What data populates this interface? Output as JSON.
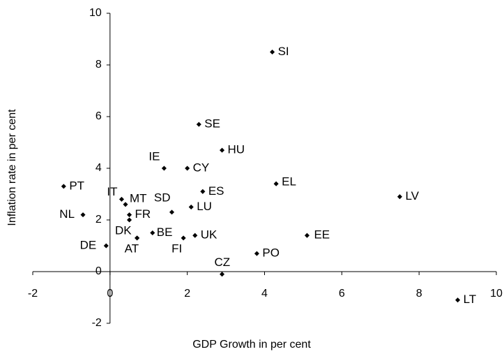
{
  "chart_data": {
    "type": "scatter",
    "x_label": "GDP Growth in per cent",
    "y_label": "Inflation rate in per cent",
    "labels": [
      "SI",
      "SE",
      "HU",
      "IE",
      "CY",
      "EL",
      "ES",
      "LV",
      "PT",
      "IT",
      "MT",
      "NL",
      "FR",
      "SD",
      "LU",
      null,
      "DK",
      "BE",
      "AT",
      "FI",
      "UK",
      "DE",
      "EE",
      "PO",
      "CZ",
      "LT"
    ],
    "x": [
      4.2,
      2.3,
      2.9,
      1.4,
      2.0,
      4.3,
      2.4,
      7.5,
      -1.2,
      0.3,
      0.4,
      -0.7,
      0.5,
      1.6,
      2.1,
      0.5,
      0.7,
      1.1,
      0.7,
      1.9,
      2.2,
      -0.1,
      5.1,
      3.8,
      2.9,
      9.0
    ],
    "y": [
      8.5,
      5.7,
      4.7,
      4.0,
      4.0,
      3.4,
      3.1,
      2.9,
      3.3,
      2.8,
      2.6,
      2.2,
      2.2,
      2.3,
      2.5,
      2.0,
      1.3,
      1.5,
      1.3,
      1.3,
      1.4,
      1.0,
      1.4,
      0.7,
      -0.1,
      -1.1
    ],
    "color": "#000000",
    "xlim": [
      -2,
      10
    ],
    "ylim": [
      -2,
      10
    ],
    "xticks": [
      -2,
      0,
      2,
      4,
      6,
      8,
      10
    ],
    "yticks": [
      -2,
      0,
      2,
      4,
      6,
      8,
      10
    ]
  }
}
